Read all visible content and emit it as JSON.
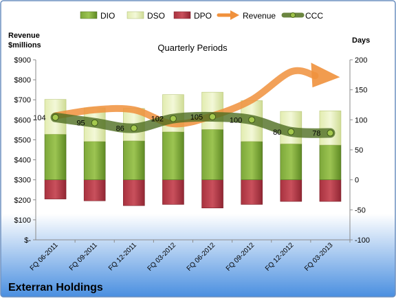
{
  "chart_data": {
    "type": "bar",
    "title": "Quarterly Periods",
    "company": "Exterran Holdings",
    "left_axis_title": [
      "Revenue",
      "$millions"
    ],
    "right_axis_title": "Days",
    "categories": [
      "FQ 06-2011",
      "FQ 09-2011",
      "FQ 12-2011",
      "FQ 03-2012",
      "FQ 06-2012",
      "FQ 09-2012",
      "FQ 12-2012",
      "FQ 03-2013"
    ],
    "left_ticks": [
      "$900",
      "$800",
      "$700",
      "$600",
      "$500",
      "$400",
      "$300",
      "$200",
      "$100",
      "$-"
    ],
    "right_ticks": [
      "200",
      "150",
      "100",
      "50",
      "0",
      "-50",
      "-100"
    ],
    "ylim_days": [
      -100,
      200
    ],
    "ylim_revenue": [
      0,
      900
    ],
    "legend_position": "top",
    "legend": [
      "DIO",
      "DSO",
      "DPO",
      "Revenue",
      "CCC"
    ],
    "series": [
      {
        "name": "DIO",
        "axis": "days",
        "color": "#6e9a2c",
        "values": [
          76,
          64,
          65,
          80,
          84,
          64,
          60,
          58
        ]
      },
      {
        "name": "DSO",
        "axis": "days",
        "color": "#e6f0b9",
        "values": [
          58,
          56,
          54,
          62,
          62,
          68,
          54,
          57
        ]
      },
      {
        "name": "DPO",
        "axis": "days",
        "color": "#b73a46",
        "values": [
          -32,
          -35,
          -43,
          -41,
          -47,
          -41,
          -36,
          -36
        ]
      },
      {
        "name": "Revenue",
        "axis": "revenue",
        "color": "#f0913c",
        "values": [
          620,
          650,
          650,
          580,
          620,
          700,
          840,
          810
        ]
      },
      {
        "name": "CCC",
        "axis": "days",
        "color": "#5c7a2c",
        "values": [
          104,
          95,
          86,
          102,
          105,
          100,
          80,
          78
        ]
      }
    ],
    "data_labels": [
      "104",
      "95",
      "86",
      "102",
      "105",
      "100",
      "80",
      "78"
    ],
    "colors": {
      "background_top": "#ffffff",
      "background_bottom": "#4a8fe0",
      "border": "#6b8fbf"
    }
  }
}
